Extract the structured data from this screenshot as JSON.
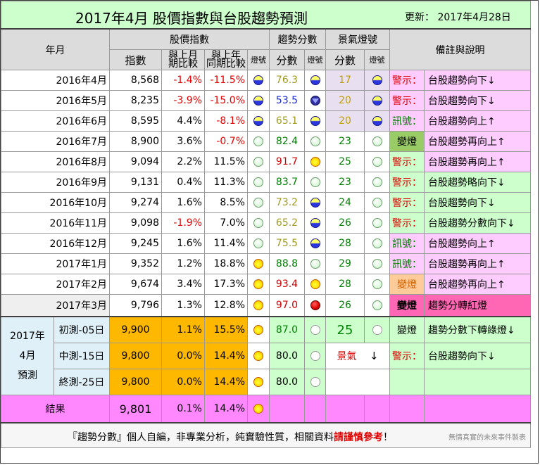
{
  "title": "2017年4月 股價指數與台股趨勢預測",
  "updated": "更新： 2017年4月28日",
  "headers": {
    "year_month": "年月",
    "index_group": "股價指數",
    "index": "指數",
    "mom_line1": "與上月",
    "mom_line2": "期比較",
    "yoy_line1": "與上年",
    "yoy_line2": "同期比較",
    "light": "燈號",
    "trend_group": "趨勢分數",
    "score": "分數",
    "trend_light": "燈號",
    "boom_group": "景氣燈號",
    "boom_score": "分數",
    "boom_light": "燈號",
    "notes": "備註與說明"
  },
  "rows": [
    {
      "ym": "2016年4月",
      "index": "8,568",
      "mom": "-1.4%",
      "yoy": "-11.5%",
      "score": "76.3",
      "boom": "17",
      "label": "警示：",
      "desc": "台股趨勢向下↓"
    },
    {
      "ym": "2016年5月",
      "index": "8,235",
      "mom": "-3.9%",
      "yoy": "-15.0%",
      "score": "53.5",
      "boom": "20",
      "label": "警示：",
      "desc": "台股趨勢向下↓"
    },
    {
      "ym": "2016年6月",
      "index": "8,595",
      "mom": "4.4%",
      "yoy": "-8.1%",
      "score": "65.1",
      "boom": "20",
      "label": "訊號：",
      "desc": "台股趨勢向上↑"
    },
    {
      "ym": "2016年7月",
      "index": "8,900",
      "mom": "3.6%",
      "yoy": "-0.7%",
      "score": "82.4",
      "boom": "23",
      "label": "變燈",
      "desc": "台股趨勢再向上↑"
    },
    {
      "ym": "2016年8月",
      "index": "9,094",
      "mom": "2.2%",
      "yoy": "11.5%",
      "score": "91.7",
      "boom": "25",
      "label": "警示：",
      "desc": "台股趨勢再向上↑"
    },
    {
      "ym": "2016年9月",
      "index": "9,131",
      "mom": "0.4%",
      "yoy": "11.3%",
      "score": "83.7",
      "boom": "23",
      "label": "警示：",
      "desc": "台股趨勢略向下↓"
    },
    {
      "ym": "2016年10月",
      "index": "9,274",
      "mom": "1.6%",
      "yoy": "8.5%",
      "score": "73.2",
      "boom": "24",
      "label": "警示：",
      "desc": "台股趨勢向下↓"
    },
    {
      "ym": "2016年11月",
      "index": "9,098",
      "mom": "-1.9%",
      "yoy": "7.0%",
      "score": "65.2",
      "boom": "26",
      "label": "警示：",
      "desc": "台股趨勢分數向下↓"
    },
    {
      "ym": "2016年12月",
      "index": "9,245",
      "mom": "1.6%",
      "yoy": "11.4%",
      "score": "75.5",
      "boom": "28",
      "label": "訊號：",
      "desc": "台股趨勢向上↑"
    },
    {
      "ym": "2017年1月",
      "index": "9,352",
      "mom": "1.2%",
      "yoy": "18.8%",
      "score": "88.8",
      "boom": "29",
      "label": "訊號：",
      "desc": "台股趨勢再向上↑"
    },
    {
      "ym": "2017年2月",
      "index": "9,674",
      "mom": "3.4%",
      "yoy": "17.3%",
      "score": "93.4",
      "boom": "28",
      "label": "變燈",
      "desc": "台股趨勢再向上↑"
    },
    {
      "ym": "2017年3月",
      "index": "9,796",
      "mom": "1.3%",
      "yoy": "12.8%",
      "score": "97.0",
      "boom": "26",
      "label": "變燈",
      "desc": "趨勢分轉紅燈"
    }
  ],
  "forecast": {
    "ym_line1": "2017年",
    "ym_line2": "4月",
    "ym_line3": "預測",
    "rows": [
      {
        "label": "初測-05日",
        "index": "9,900",
        "mom": "1.1%",
        "yoy": "15.5%",
        "score": "87.0",
        "boom": "25",
        "note_label": "變燈",
        "note_desc": "趨勢分數下轉綠燈↓"
      },
      {
        "label": "中測-15日",
        "index": "9,800",
        "mom": "0.0%",
        "yoy": "14.4%",
        "score": "80.0",
        "boom_text": "景氣",
        "boom_arrow": "↓",
        "note_label": "警示：",
        "note_desc": "台股趨勢向下↓"
      },
      {
        "label": "終測-25日",
        "index": "9,800",
        "mom": "0.0%",
        "yoy": "14.4%",
        "score": "80.0"
      }
    ]
  },
  "result": {
    "label": "結果",
    "index": "9,801",
    "mom": "0.1%",
    "yoy": "14.4%"
  },
  "footer": {
    "note_pre": "『趨勢分數』個人自編，非專業分析，純實驗性質，相關資料",
    "note_highlight": "請謹慎參考",
    "note_post": "！",
    "credit": "無情真實的未來事件製表"
  },
  "colors": {
    "warn": "#e00000",
    "signal": "#008000",
    "forecast_index": "#ffb800",
    "result": "#ff88ff"
  }
}
